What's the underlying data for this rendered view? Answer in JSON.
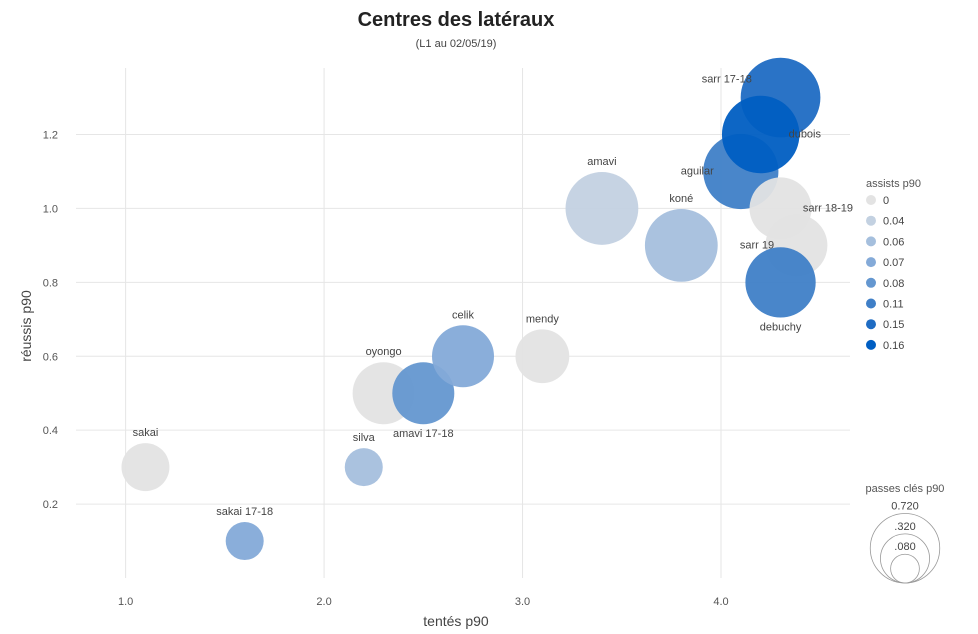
{
  "chart_data": {
    "type": "scatter",
    "title": "Centres des latéraux",
    "subtitle": "(L1 au 02/05/19)",
    "xlabel": "tentés p90",
    "ylabel": "réussis p90",
    "xlim": [
      0.75,
      4.65
    ],
    "ylim": [
      0.0,
      1.38
    ],
    "x_ticks": [
      "1.0",
      "2.0",
      "3.0",
      "4.0"
    ],
    "y_ticks": [
      "0.2",
      "0.4",
      "0.6",
      "0.8",
      "1.0",
      "1.2"
    ],
    "grid": true,
    "points": [
      {
        "label": "sakai",
        "x": 1.1,
        "y": 0.3,
        "size": 0.08,
        "assists": 0
      },
      {
        "label": "sakai 17-18",
        "x": 1.6,
        "y": 0.1,
        "size": 0.04,
        "assists": 0.07
      },
      {
        "label": "silva",
        "x": 2.2,
        "y": 0.3,
        "size": 0.04,
        "assists": 0.06
      },
      {
        "label": "oyongo",
        "x": 2.3,
        "y": 0.5,
        "size": 0.16,
        "assists": 0
      },
      {
        "label": "amavi 17-18",
        "x": 2.5,
        "y": 0.5,
        "size": 0.16,
        "assists": 0.08
      },
      {
        "label": "celik",
        "x": 2.7,
        "y": 0.6,
        "size": 0.16,
        "assists": 0.07
      },
      {
        "label": "mendy",
        "x": 3.1,
        "y": 0.6,
        "size": 0.11,
        "assists": 0
      },
      {
        "label": "amavi",
        "x": 3.4,
        "y": 1.0,
        "size": 0.24,
        "assists": 0.04
      },
      {
        "label": "koné",
        "x": 3.8,
        "y": 0.9,
        "size": 0.24,
        "assists": 0.06
      },
      {
        "label": "aguilar",
        "x": 4.1,
        "y": 1.1,
        "size": 0.26,
        "assists": 0.11
      },
      {
        "label": "sarr 17-18",
        "x": 4.3,
        "y": 1.3,
        "size": 0.3,
        "assists": 0.15
      },
      {
        "label": "dubois",
        "x": 4.2,
        "y": 1.2,
        "size": 0.28,
        "assists": 0.16
      },
      {
        "label": "sarr 18-19",
        "x": 4.3,
        "y": 1.0,
        "size": 0.16,
        "assists": 0
      },
      {
        "label": "sarr 19",
        "x": 4.38,
        "y": 0.9,
        "size": 0.16,
        "assists": 0
      },
      {
        "label": "debuchy",
        "x": 4.3,
        "y": 0.8,
        "size": 0.22,
        "assists": 0.11
      }
    ],
    "color_legend": {
      "title": "assists p90",
      "entries": [
        {
          "label": "0",
          "value": 0,
          "color": "#e3e3e3"
        },
        {
          "label": "0.04",
          "value": 0.04,
          "color": "#c3d1e1"
        },
        {
          "label": "0.06",
          "value": 0.06,
          "color": "#a5bfdd"
        },
        {
          "label": "0.07",
          "value": 0.07,
          "color": "#84aad8"
        },
        {
          "label": "0.08",
          "value": 0.08,
          "color": "#6497d0"
        },
        {
          "label": "0.11",
          "value": 0.11,
          "color": "#3f7fc7"
        },
        {
          "label": "0.15",
          "value": 0.15,
          "color": "#1f6cc3"
        },
        {
          "label": "0.16",
          "value": 0.16,
          "color": "#005ec2"
        }
      ]
    },
    "size_legend": {
      "title": "passes clés p90",
      "entries": [
        {
          "label": "0.720",
          "value": 0.72
        },
        {
          "label": ".320",
          "value": 0.32
        },
        {
          "label": ".080",
          "value": 0.08
        }
      ]
    }
  }
}
